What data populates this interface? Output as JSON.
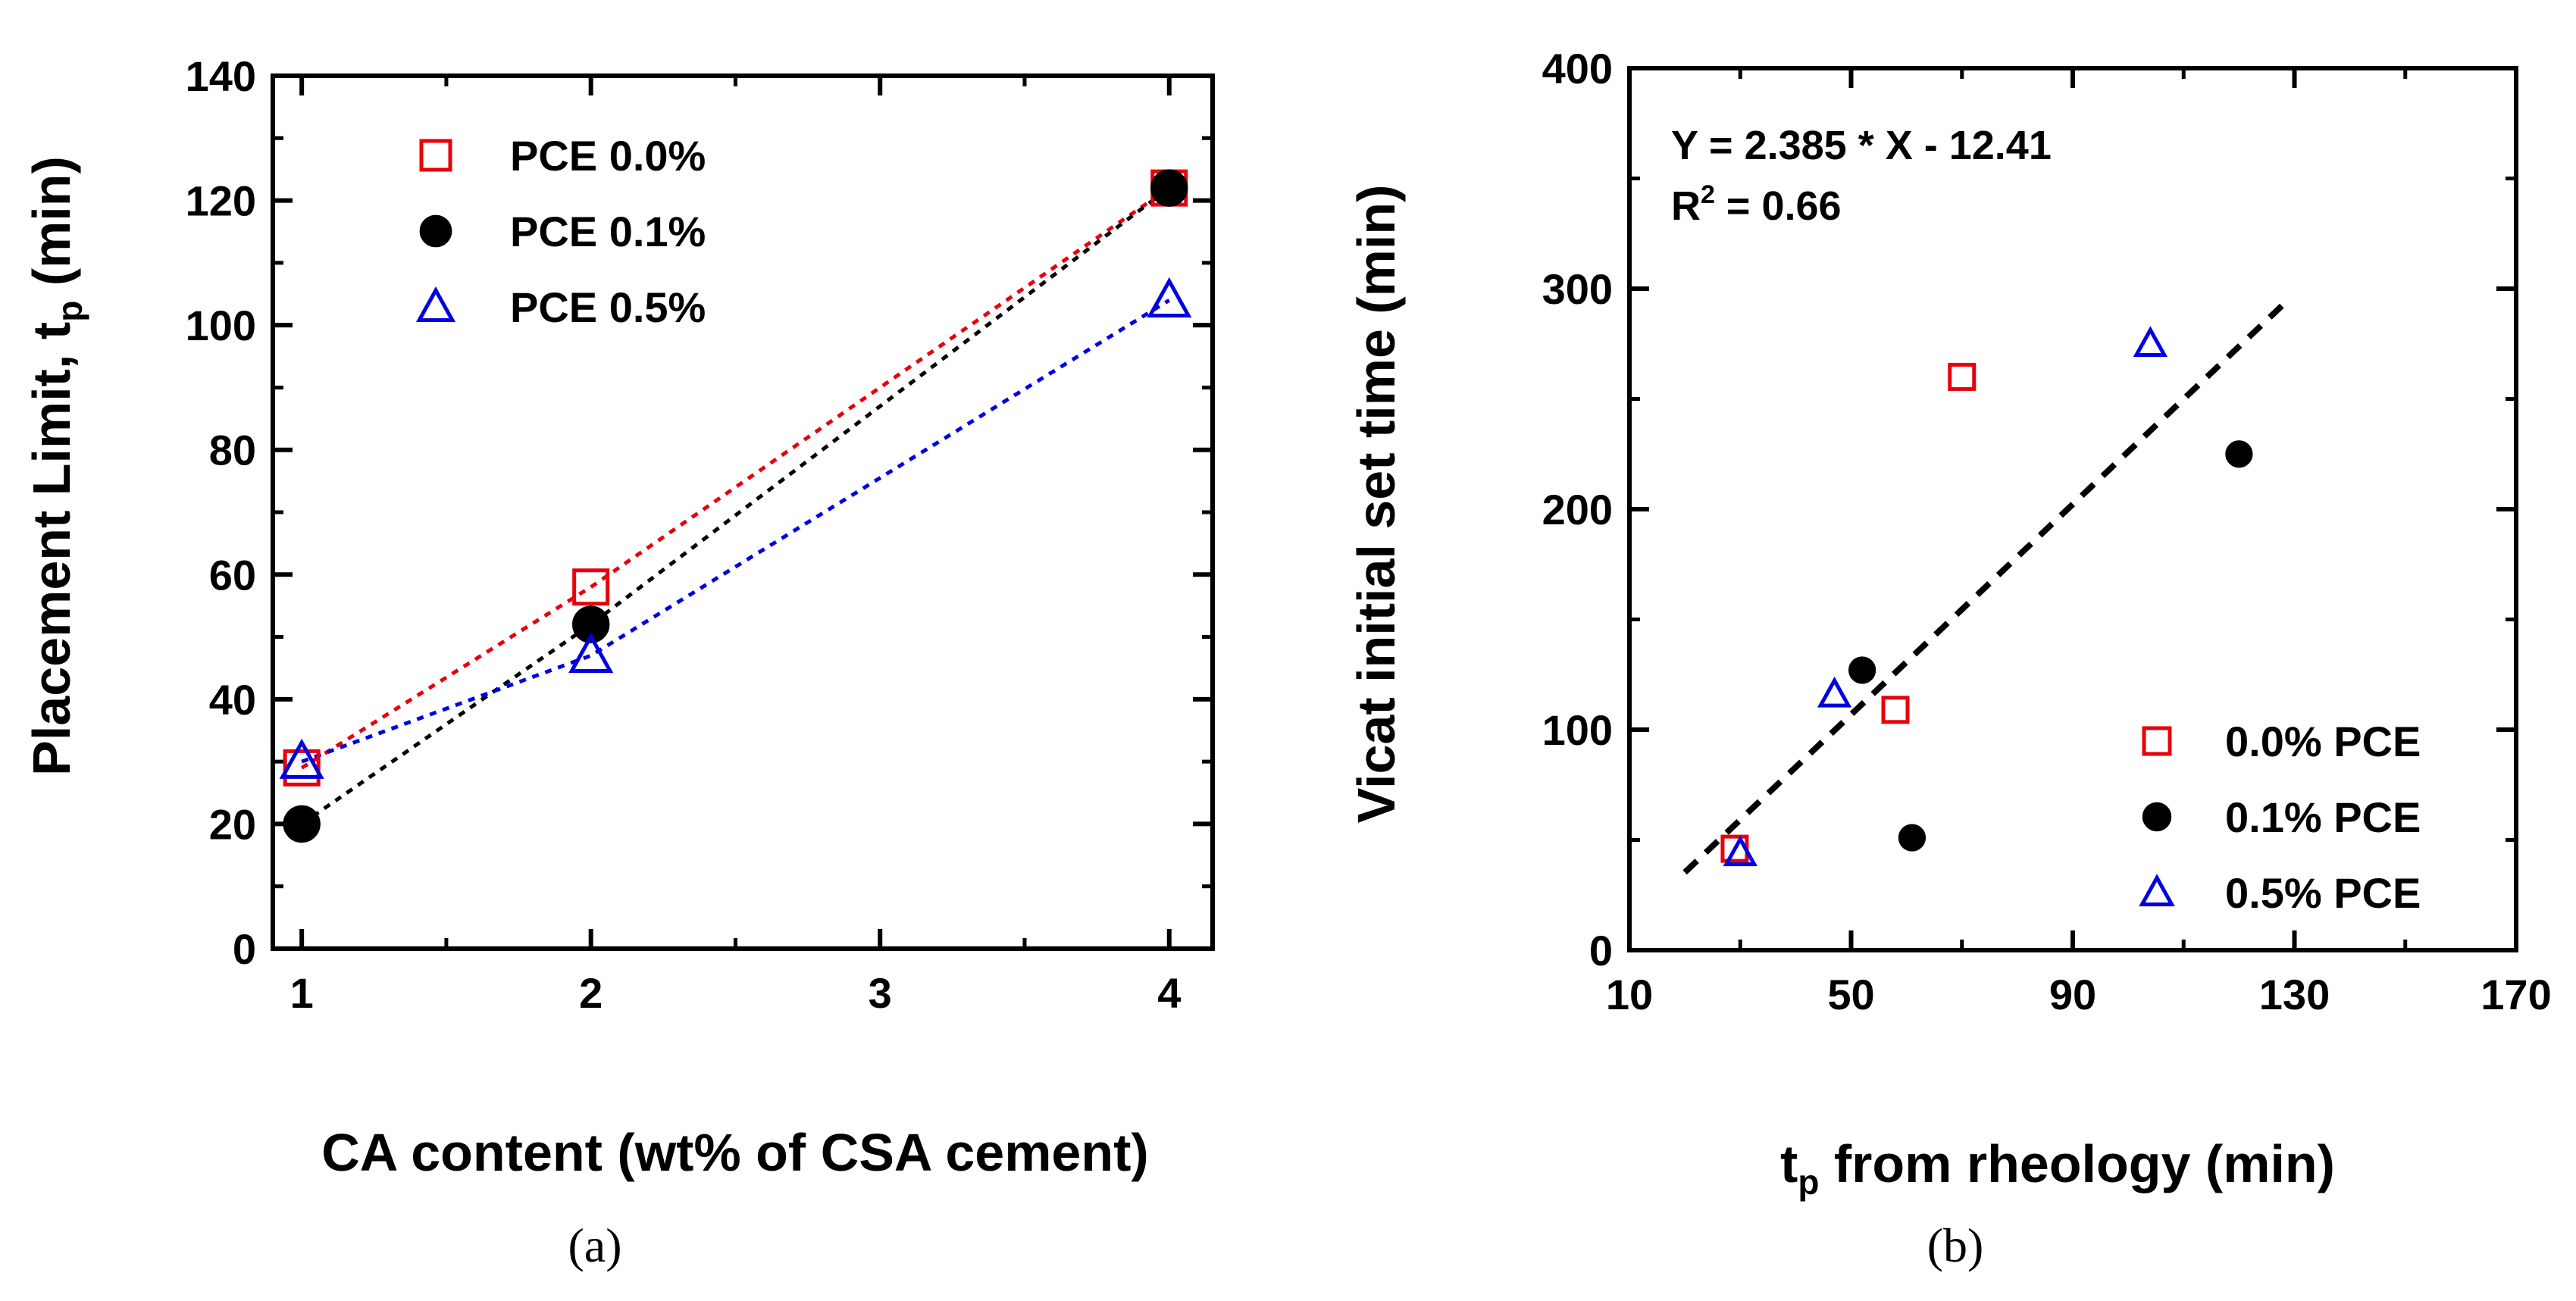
{
  "colors": {
    "axis": "#000000",
    "pce00": "#e8000b",
    "pce01": "#000000",
    "pce05": "#0000e0",
    "fit": "#000000"
  },
  "chart_data": [
    {
      "panel_label": "(a)",
      "type": "scatter",
      "xlabel": "CA content (wt% of CSA cement)",
      "ylabel_main": "Placement Limit, t",
      "ylabel_sub": "p",
      "ylabel_unit": " (min)",
      "xlim": [
        0.9,
        4.15
      ],
      "ylim": [
        0,
        140
      ],
      "xticks": [
        1,
        2,
        3,
        4
      ],
      "yticks": [
        0,
        20,
        40,
        60,
        80,
        100,
        120,
        140
      ],
      "legend_position": "top-left",
      "grid": false,
      "series": [
        {
          "name": "PCE 0.0%",
          "marker": "square",
          "color": "#e8000b",
          "x": [
            1,
            2,
            4
          ],
          "y": [
            29,
            58,
            122
          ],
          "trend_line": true
        },
        {
          "name": "PCE 0.1%",
          "marker": "circle",
          "color": "#000000",
          "x": [
            1,
            2,
            4
          ],
          "y": [
            20,
            52,
            122
          ],
          "trend_line": true
        },
        {
          "name": "PCE 0.5%",
          "marker": "triangle",
          "color": "#0000e0",
          "x": [
            1,
            2,
            4
          ],
          "y": [
            30,
            47,
            104
          ],
          "trend_line": true
        }
      ]
    },
    {
      "panel_label": "(b)",
      "type": "scatter",
      "xlabel_sub": "p",
      "xlabel_main": "t",
      "xlabel_rest": " from rheology (min)",
      "ylabel": "Vicat initial set time (min)",
      "xlim": [
        10,
        170
      ],
      "ylim": [
        0,
        400
      ],
      "xticks": [
        10,
        50,
        90,
        130,
        170
      ],
      "yticks": [
        0,
        100,
        200,
        300,
        400
      ],
      "legend_position": "bottom-right",
      "grid": false,
      "annotation_line1": "Y = 2.385 * X - 12.41",
      "annotation_line2_prefix": "R",
      "annotation_line2_sup": "2",
      "annotation_line2_rest": " = 0.66",
      "fit": {
        "slope": 2.385,
        "intercept": -12.41,
        "x_range": [
          20,
          128
        ]
      },
      "series": [
        {
          "name": "0.0% PCE",
          "marker": "square",
          "color": "#e8000b",
          "x": [
            29,
            58,
            70
          ],
          "y": [
            46,
            109,
            260
          ]
        },
        {
          "name": "0.1% PCE",
          "marker": "circle",
          "color": "#000000",
          "x": [
            52,
            61,
            120
          ],
          "y": [
            127,
            51,
            225
          ]
        },
        {
          "name": "0.5% PCE",
          "marker": "triangle",
          "color": "#0000e0",
          "x": [
            30,
            47,
            104
          ],
          "y": [
            44,
            116,
            275
          ]
        }
      ]
    }
  ]
}
